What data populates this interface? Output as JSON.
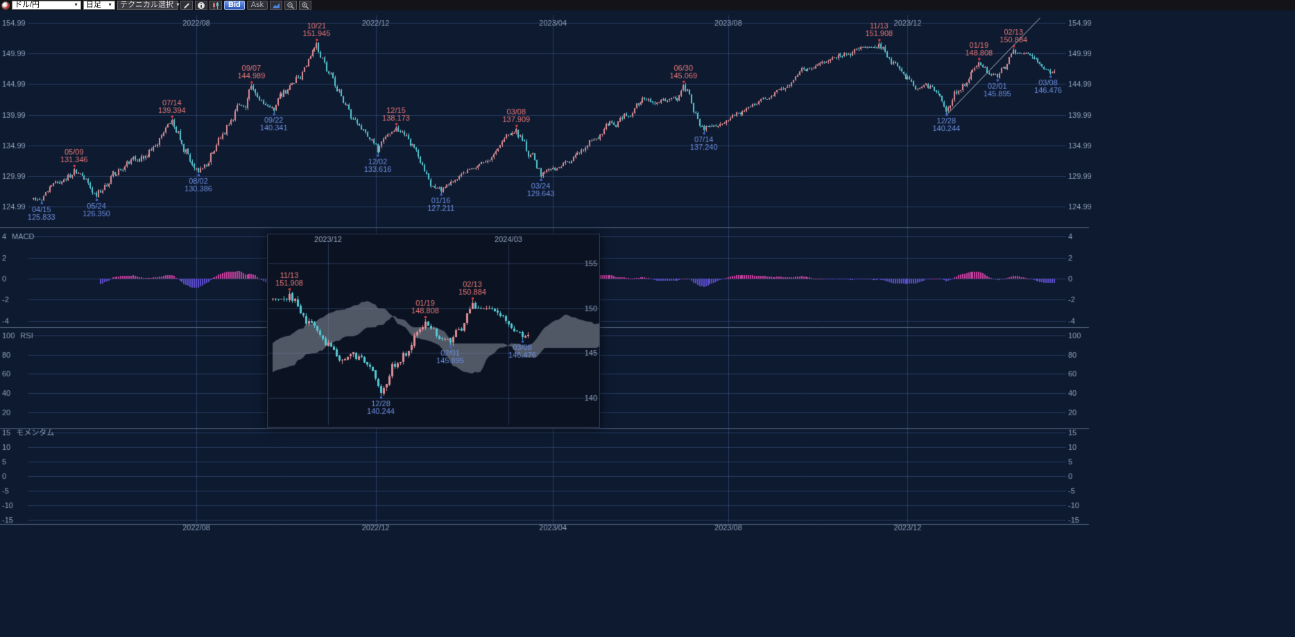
{
  "toolbar": {
    "symbol_select": {
      "value": "ドル/円"
    },
    "period_select": {
      "value": "日足"
    },
    "technical_select": {
      "label": "テクニカル選択"
    },
    "bid_button": "Bid",
    "ask_button": "Ask"
  },
  "colors": {
    "bg": "#0d1a30",
    "inset_bg": "#0b1322",
    "grid": "rgba(96,128,190,0.33)",
    "separator": "#55657f",
    "axis_text": "#8fa0ba",
    "candle_up": "#e08e96",
    "candle_down": "#55c8d2",
    "pivot_high_text": "#e87878",
    "pivot_low_text": "#6e8fe0",
    "pivot_high_marker": "#e84040",
    "pivot_low_marker": "#4868e0",
    "ma20": "#d45fd4",
    "ma50": "#5b6ee2",
    "ma75": "#c97a2b",
    "ma200": "#9847c9",
    "macd_line": "#cdd455",
    "macd_signal": "#84ab49",
    "hist_pos": "#cc3fa0",
    "hist_neg": "#5f4fd0",
    "rsi_line": "#7fbb68",
    "momentum_line": "#7fbb68",
    "trendline": "#b8c0cc",
    "cloud_fill": "rgba(150,158,170,0.5)",
    "span_a": "#b99646",
    "span_b": "#8f7433",
    "tenkan": "#e05050",
    "kijun": "#4a6ae0",
    "chikou": "#d652d6",
    "bollinger": "#cf7c2a"
  },
  "chart_data": {
    "type": "candlestick",
    "symbol": "ドル/円",
    "timeframe": "日足",
    "series_start": "2022-04-11",
    "series_end": "2024-03-12",
    "top_axis_labels": [
      "2022/08",
      "2022/12",
      "2023/04",
      "2023/08",
      "2023/12"
    ],
    "bottom_axis_labels": [
      "2022/08",
      "2022/12",
      "2023/04",
      "2023/08",
      "2023/12"
    ],
    "price_ticks": [
      154.99,
      149.99,
      144.99,
      139.99,
      134.99,
      129.99,
      124.99
    ],
    "pivots": [
      {
        "date": "2022-04-15",
        "label": "04/15",
        "price": 125.833,
        "type": "low"
      },
      {
        "date": "2022-05-09",
        "label": "05/09",
        "price": 131.346,
        "type": "high"
      },
      {
        "date": "2022-05-24",
        "label": "05/24",
        "price": 126.35,
        "type": "low"
      },
      {
        "date": "2022-07-14",
        "label": "07/14",
        "price": 139.394,
        "type": "high"
      },
      {
        "date": "2022-08-02",
        "label": "08/02",
        "price": 130.386,
        "type": "low"
      },
      {
        "date": "2022-09-07",
        "label": "09/07",
        "price": 144.989,
        "type": "high"
      },
      {
        "date": "2022-09-22",
        "label": "09/22",
        "price": 140.341,
        "type": "low"
      },
      {
        "date": "2022-10-21",
        "label": "10/21",
        "price": 151.945,
        "type": "high"
      },
      {
        "date": "2022-12-02",
        "label": "12/02",
        "price": 133.616,
        "type": "low"
      },
      {
        "date": "2022-12-15",
        "label": "12/15",
        "price": 138.173,
        "type": "high"
      },
      {
        "date": "2023-01-16",
        "label": "01/16",
        "price": 127.211,
        "type": "low"
      },
      {
        "date": "2023-03-08",
        "label": "03/08",
        "price": 137.909,
        "type": "high"
      },
      {
        "date": "2023-03-24",
        "label": "03/24",
        "price": 129.643,
        "type": "low"
      },
      {
        "date": "2023-06-30",
        "label": "06/30",
        "price": 145.069,
        "type": "high"
      },
      {
        "date": "2023-07-14",
        "label": "07/14",
        "price": 137.24,
        "type": "low"
      },
      {
        "date": "2023-11-13",
        "label": "11/13",
        "price": 151.908,
        "type": "high"
      },
      {
        "date": "2023-12-28",
        "label": "12/28",
        "price": 140.244,
        "type": "low"
      },
      {
        "date": "2024-01-19",
        "label": "01/19",
        "price": 148.808,
        "type": "high"
      },
      {
        "date": "2024-02-01",
        "label": "02/01",
        "price": 145.895,
        "type": "low"
      },
      {
        "date": "2024-02-13",
        "label": "02/13",
        "price": 150.884,
        "type": "high"
      },
      {
        "date": "2024-03-08",
        "label": "03/08",
        "price": 146.476,
        "type": "low"
      }
    ],
    "trendline": {
      "from_date": "2023-12-28",
      "from_price": 139.9,
      "to_date": "2024-03-01",
      "to_price": 155.8
    },
    "panels": [
      {
        "id": "macd",
        "title": "MACD",
        "ticks": [
          4,
          2,
          0,
          -2,
          -4
        ]
      },
      {
        "id": "rsi",
        "title": "RSI",
        "ticks": [
          100,
          80,
          60,
          40,
          20
        ]
      },
      {
        "id": "momentum",
        "title": "モメンタム",
        "ticks": [
          15,
          10,
          5,
          0,
          -5,
          -10,
          -15
        ]
      }
    ],
    "inset": {
      "top_axis_labels": [
        "2023/12",
        "2024/03"
      ],
      "price_ticks": [
        155,
        150,
        145,
        140
      ],
      "pivot_dates": [
        "2023-11-13",
        "2023-12-28",
        "2024-01-19",
        "2024-02-01",
        "2024-02-13",
        "2024-03-08"
      ]
    }
  }
}
